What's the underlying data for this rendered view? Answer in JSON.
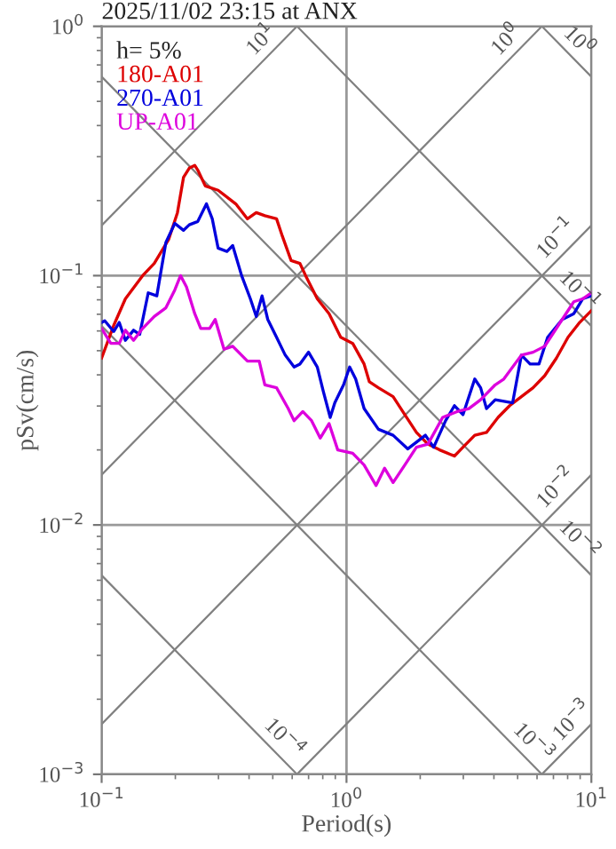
{
  "chart_data": {
    "type": "line",
    "title": "2025/11/02 23:15 at ANX",
    "xlabel": "Period(s)",
    "ylabel": "pSv(cm/s)",
    "legend_title": "h= 5%",
    "legend": "top left",
    "log": "xy",
    "grid": true,
    "xlim": [
      0.1,
      10
    ],
    "ylim": [
      0.001,
      1
    ],
    "xticks": [
      {
        "value": 0.1,
        "label": "10$^{−1}$"
      },
      {
        "value": 1,
        "label": "10$^{0}$"
      },
      {
        "value": 10,
        "label": "10$^{1}$"
      }
    ],
    "yticks": [
      {
        "value": 0.001,
        "label": "10$^{−3}$"
      },
      {
        "value": 0.01,
        "label": "10$^{−2}$"
      },
      {
        "value": 0.1,
        "label": "10$^{−1}$"
      },
      {
        "value": 1,
        "label": "10$^{0}$"
      }
    ],
    "series": [
      {
        "name": "180-A01",
        "color": "#dd0000",
        "x": [
          0.1,
          0.112,
          0.125,
          0.147,
          0.164,
          0.188,
          0.204,
          0.216,
          0.228,
          0.24,
          0.247,
          0.265,
          0.299,
          0.353,
          0.394,
          0.428,
          0.464,
          0.518,
          0.547,
          0.594,
          0.645,
          0.681,
          0.76,
          0.849,
          0.947,
          1.06,
          1.18,
          1.24,
          1.35,
          1.55,
          1.73,
          1.93,
          2.15,
          2.4,
          2.76,
          2.99,
          3.34,
          3.73,
          4.16,
          4.64,
          5.18,
          5.78,
          6.45,
          7.2,
          8.03,
          8.96,
          10
        ],
        "values": [
          0.0467,
          0.0631,
          0.0807,
          0.1,
          0.112,
          0.14,
          0.179,
          0.248,
          0.27,
          0.277,
          0.265,
          0.229,
          0.22,
          0.194,
          0.169,
          0.179,
          0.174,
          0.169,
          0.144,
          0.115,
          0.112,
          0.1,
          0.0807,
          0.0704,
          0.0566,
          0.0535,
          0.0442,
          0.0375,
          0.0355,
          0.0327,
          0.0277,
          0.0235,
          0.0211,
          0.02,
          0.0189,
          0.0205,
          0.0229,
          0.0235,
          0.027,
          0.0301,
          0.0327,
          0.0355,
          0.0397,
          0.0467,
          0.0566,
          0.0649,
          0.0724
        ]
      },
      {
        "name": "270-A01",
        "color": "#0000dd",
        "x": [
          0.1,
          0.103,
          0.112,
          0.118,
          0.125,
          0.135,
          0.143,
          0.155,
          0.168,
          0.183,
          0.199,
          0.216,
          0.228,
          0.247,
          0.268,
          0.283,
          0.299,
          0.325,
          0.343,
          0.373,
          0.405,
          0.428,
          0.452,
          0.477,
          0.518,
          0.562,
          0.611,
          0.645,
          0.7,
          0.76,
          0.803,
          0.858,
          0.896,
          0.973,
          1.03,
          1.09,
          1.18,
          1.35,
          1.55,
          1.78,
          2.1,
          2.27,
          2.54,
          2.76,
          2.99,
          3.34,
          3.53,
          3.73,
          4.05,
          4.77,
          5.18,
          5.62,
          6.11,
          6.63,
          7.6,
          8.48,
          9.21,
          10
        ],
        "values": [
          0.0649,
          0.0659,
          0.0597,
          0.0649,
          0.055,
          0.0604,
          0.0581,
          0.0853,
          0.083,
          0.136,
          0.162,
          0.152,
          0.16,
          0.165,
          0.194,
          0.169,
          0.129,
          0.125,
          0.132,
          0.1,
          0.0807,
          0.0686,
          0.083,
          0.0667,
          0.0566,
          0.048,
          0.043,
          0.0442,
          0.0493,
          0.043,
          0.0345,
          0.027,
          0.0309,
          0.0365,
          0.043,
          0.0385,
          0.0293,
          0.0242,
          0.0229,
          0.0202,
          0.0229,
          0.0205,
          0.0262,
          0.0301,
          0.0277,
          0.0385,
          0.0355,
          0.0293,
          0.0318,
          0.0309,
          0.048,
          0.0442,
          0.0442,
          0.0566,
          0.0667,
          0.0704,
          0.0807,
          0.083
        ]
      },
      {
        "name": "UP-A01",
        "color": "#dd00dd",
        "x": [
          0.1,
          0.109,
          0.118,
          0.125,
          0.135,
          0.147,
          0.164,
          0.183,
          0.199,
          0.21,
          0.222,
          0.24,
          0.254,
          0.276,
          0.291,
          0.316,
          0.343,
          0.394,
          0.44,
          0.464,
          0.518,
          0.578,
          0.611,
          0.663,
          0.72,
          0.781,
          0.849,
          0.921,
          1.06,
          1.18,
          1.32,
          1.43,
          1.55,
          1.73,
          1.93,
          2.15,
          2.47,
          2.83,
          3.16,
          3.53,
          4.05,
          4.39,
          5.18,
          5.78,
          6.45,
          7.6,
          8.48,
          9.21,
          10
        ],
        "values": [
          0.0614,
          0.0535,
          0.0535,
          0.0604,
          0.055,
          0.0614,
          0.0686,
          0.0743,
          0.0877,
          0.1,
          0.0901,
          0.0704,
          0.0614,
          0.0614,
          0.0667,
          0.0507,
          0.0521,
          0.0454,
          0.0454,
          0.0365,
          0.0355,
          0.0293,
          0.0262,
          0.0285,
          0.0262,
          0.0223,
          0.0255,
          0.02,
          0.0194,
          0.0174,
          0.0144,
          0.0169,
          0.0148,
          0.0174,
          0.0205,
          0.0211,
          0.027,
          0.0285,
          0.0293,
          0.0318,
          0.0365,
          0.0385,
          0.048,
          0.0493,
          0.0521,
          0.0667,
          0.0786,
          0.0807,
          0.0853
        ]
      },
      {
        "color": "#808080",
        "x": [
          0.1,
          0.628
        ],
        "values": [
          0.159,
          1
        ]
      },
      {
        "color": "#808080",
        "x": [
          0.1,
          6.28
        ],
        "values": [
          0.0159,
          1
        ]
      },
      {
        "color": "#808080",
        "x": [
          0.1,
          10
        ],
        "values": [
          0.00159,
          0.159
        ]
      },
      {
        "color": "#808080",
        "x": [
          0.628,
          10
        ],
        "values": [
          0.001,
          0.0159
        ]
      },
      {
        "color": "#808080",
        "x": [
          6.28,
          10
        ],
        "values": [
          0.001,
          0.00159
        ]
      },
      {
        "color": "#808080",
        "x": [
          6.28,
          10
        ],
        "values": [
          1,
          0.628
        ]
      },
      {
        "color": "#808080",
        "x": [
          0.628,
          10
        ],
        "values": [
          1,
          0.0628
        ]
      },
      {
        "color": "#808080",
        "x": [
          0.1,
          10
        ],
        "values": [
          0.628,
          0.00628
        ]
      },
      {
        "color": "#808080",
        "x": [
          0.1,
          6.28
        ],
        "values": [
          0.0628,
          0.001
        ]
      },
      {
        "color": "#808080",
        "x": [
          0.1,
          0.628
        ],
        "values": [
          0.00628,
          0.001
        ]
      }
    ],
    "annotations": [
      {
        "text": "10$^{1}$",
        "x": 0.5,
        "y": 0.796
      },
      {
        "text": "10$^{0}$",
        "x": 5,
        "y": 0.796
      },
      {
        "text": "10$^{−1}$",
        "x": 8,
        "y": 0.127
      },
      {
        "text": "10$^{−2}$",
        "x": 8,
        "y": 0.0127
      },
      {
        "text": "10$^{−3}$",
        "x": 9.3,
        "y": 0.00148
      },
      {
        "text": "10$^{0}$",
        "x": 8,
        "y": 0.785
      },
      {
        "text": "10$^{−1}$",
        "x": 8,
        "y": 0.0785
      },
      {
        "text": "10$^{−2}$",
        "x": 8,
        "y": 0.00785
      },
      {
        "text": "10$^{−3}$",
        "x": 5.2,
        "y": 0.00121
      },
      {
        "text": "10$^{−4}$",
        "x": 0.5,
        "y": 0.00126
      }
    ]
  }
}
